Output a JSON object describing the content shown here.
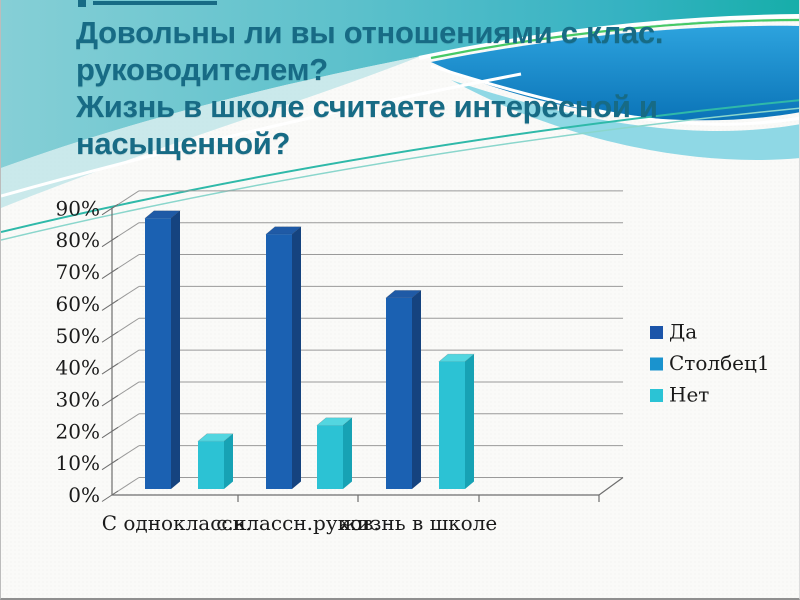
{
  "title": {
    "lines": [
      "Довольны ли вы отношениями с клас.",
      "руководителем?",
      "Жизнь в школе считаете интересной и",
      "насыщенной?"
    ]
  },
  "theme": {
    "title_color": "#176B85",
    "banner_teal": "#5BC0CB",
    "banner_blue": "#0C78BC",
    "banner_cyan": "#8FD8E5",
    "accent_green": "#2FB9A9",
    "accent_green_bright": "#46C966",
    "grid_color": "#9A9A9A",
    "axis_color": "#6E6E6E"
  },
  "chart_data": {
    "type": "bar",
    "projection": "3d",
    "categories": [
      "С одноклассн.",
      "с.классн.руков.",
      "жизнь в школе"
    ],
    "series": [
      {
        "name": "Да",
        "values": [
          85,
          80,
          60
        ],
        "color": "#1B61B2",
        "color_top": "#1F5AA6",
        "color_side": "#15437F",
        "legend_color": "#1C55A9"
      },
      {
        "name": "Столбец1",
        "values": [
          0,
          0,
          0
        ],
        "color": "#1A93CE",
        "color_top": "#1A93CE",
        "color_side": "#1A93CE",
        "legend_color": "#1A93CE"
      },
      {
        "name": "Нет",
        "values": [
          15,
          20,
          40
        ],
        "color": "#2CC2D4",
        "color_top": "#53D6E0",
        "color_side": "#17A2B4",
        "legend_color": "#2BC3D5"
      }
    ],
    "ylim": [
      0,
      90
    ],
    "ytick_step": 10,
    "yticks": [
      "0%",
      "10%",
      "20%",
      "30%",
      "40%",
      "50%",
      "60%",
      "70%",
      "80%",
      "90%"
    ],
    "grid": true,
    "legend_position": "right"
  }
}
